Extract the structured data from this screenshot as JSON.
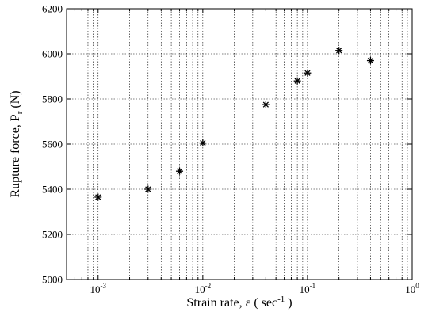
{
  "chart_data": {
    "type": "scatter",
    "xscale": "log",
    "xlim": [
      0.0005,
      1
    ],
    "ylim": [
      5000,
      6200
    ],
    "grid": true,
    "marker": "*",
    "xlabel": "Strain rate,  ε ( sec",
    "xlabel_sup": "-1",
    "xlabel_end": " )",
    "ylabel": "Rupture force,  P",
    "ylabel_sub": "r",
    "ylabel_end": " (N)",
    "xticks": [
      {
        "value": 0.001,
        "base": "10",
        "exp": "-3"
      },
      {
        "value": 0.01,
        "base": "10",
        "exp": "-2"
      },
      {
        "value": 0.1,
        "base": "10",
        "exp": "-1"
      },
      {
        "value": 1,
        "base": "10",
        "exp": "0"
      }
    ],
    "yticks": [
      5000,
      5200,
      5400,
      5600,
      5800,
      6000,
      6200
    ],
    "points": [
      {
        "x": 0.001,
        "y": 5365
      },
      {
        "x": 0.003,
        "y": 5400
      },
      {
        "x": 0.006,
        "y": 5480
      },
      {
        "x": 0.01,
        "y": 5605
      },
      {
        "x": 0.04,
        "y": 5775
      },
      {
        "x": 0.08,
        "y": 5880
      },
      {
        "x": 0.1,
        "y": 5915
      },
      {
        "x": 0.2,
        "y": 6015
      },
      {
        "x": 0.4,
        "y": 5970
      }
    ]
  }
}
